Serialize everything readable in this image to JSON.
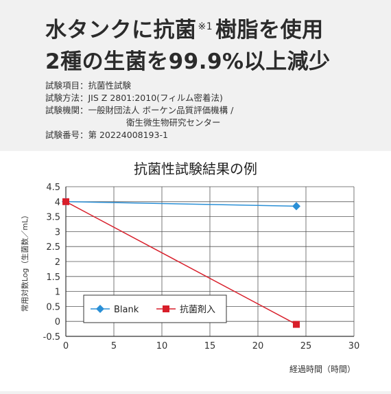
{
  "headline": {
    "line1_a": "水タンクに抗菌",
    "line1_note": "※1",
    "line1_b": "樹脂を使用",
    "line2": "2種の生菌を99.9%以上減少"
  },
  "test_info": {
    "item": "試験項目：抗菌性試験",
    "method": "試験方法：JIS Z 2801:2010(フィルム密着法)",
    "org_line1": "試験機関：一般財団法人 ボーケン品質評価機構 /",
    "org_line2": "衛生微生物研究センター",
    "number": "試験番号：第 20224008193-1"
  },
  "chart_data": {
    "type": "line",
    "title": "抗菌性試験結果の例",
    "xlabel": "経過時間（時間）",
    "ylabel": "常用対数Log（生菌数／mL）",
    "xlim": [
      0,
      30
    ],
    "ylim": [
      -0.5,
      4.5
    ],
    "x_ticks": [
      "0",
      "5",
      "10",
      "15",
      "20",
      "25",
      "30"
    ],
    "y_ticks": [
      "4.5",
      "4",
      "3.5",
      "3",
      "2.5",
      "2",
      "1.5",
      "1",
      "0.5",
      "0",
      "-0.5"
    ],
    "grid": true,
    "legend_position": "bottom-left",
    "series": [
      {
        "name": "Blank",
        "marker": "diamond",
        "color": "#2a8fd6",
        "x": [
          0,
          24
        ],
        "y": [
          4.0,
          3.85
        ]
      },
      {
        "name": "抗菌剤入",
        "marker": "square",
        "color": "#d81e2a",
        "x": [
          0,
          24
        ],
        "y": [
          4.0,
          -0.1
        ]
      }
    ]
  }
}
